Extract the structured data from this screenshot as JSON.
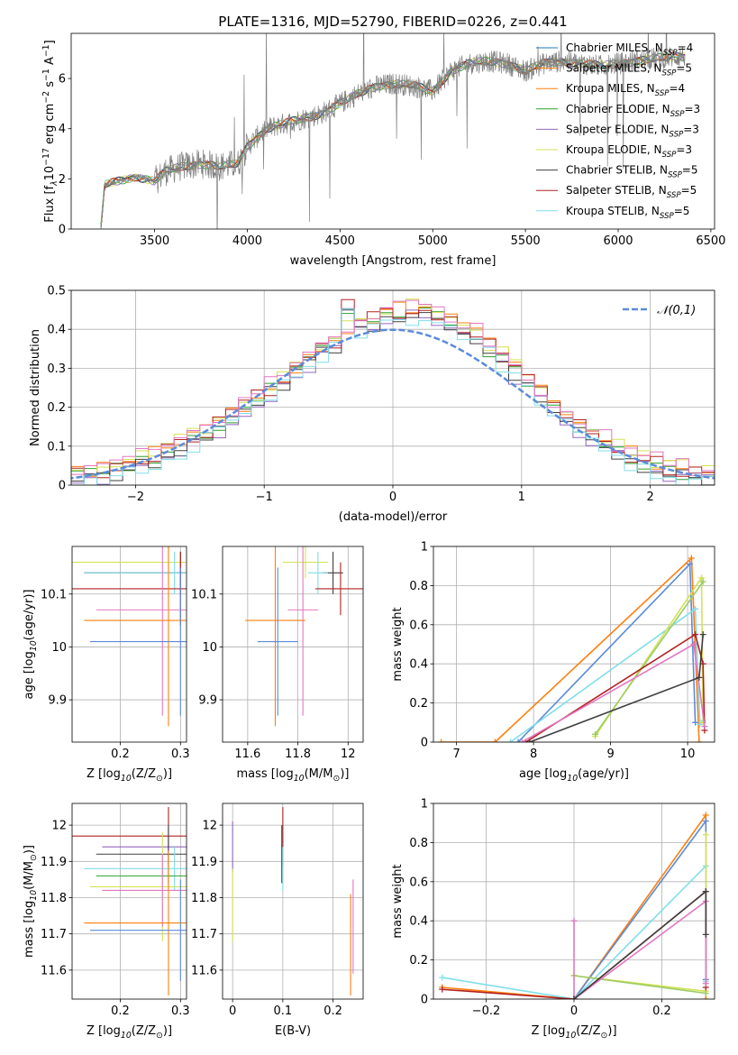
{
  "figure_title": "PLATE=1316, MJD=52790, FIBERID=0226, z=0.441",
  "chart_data": [
    {
      "type": "line",
      "panel": "spectrum",
      "xlabel": "wavelength [Angstrom, rest frame]",
      "ylabel": "Flux [f$_\\lambda$10$^{-17}$ erg cm$^{-2}$ s$^{-1}$ A$^{-1}$]",
      "xlim": [
        3050,
        6520
      ],
      "ylim": [
        0,
        7.8
      ],
      "xticks": [
        3500,
        4000,
        4500,
        5000,
        5500,
        6000,
        6500
      ],
      "yticks": [
        0,
        2,
        4,
        6
      ],
      "grid": false,
      "legend": "top-right",
      "data_color": "#808080",
      "wavelength_range": [
        3210,
        6360
      ],
      "continuum_knots": {
        "x": [
          3210,
          3230,
          3300,
          3400,
          3500,
          3560,
          3650,
          3750,
          3850,
          3950,
          4000,
          4100,
          4200,
          4300,
          4400,
          4500,
          4600,
          4700,
          4800,
          4900,
          5000,
          5100,
          5200,
          5300,
          5400,
          5500,
          5600,
          5700,
          5800,
          5900,
          6000,
          6100,
          6200,
          6360
        ],
        "y": [
          0.0,
          1.75,
          1.9,
          2.1,
          1.9,
          2.3,
          2.5,
          2.6,
          2.5,
          2.6,
          3.3,
          4.0,
          4.2,
          4.4,
          4.6,
          5.0,
          5.4,
          5.7,
          5.8,
          5.7,
          5.5,
          6.3,
          6.6,
          6.7,
          6.6,
          6.3,
          6.6,
          6.7,
          6.6,
          6.5,
          6.6,
          6.7,
          6.8,
          6.9
        ]
      },
      "series": [
        {
          "name": "Chabrier MILES, N$_{SSP}$=4",
          "color": "#1f77b4"
        },
        {
          "name": "Salpeter MILES, N$_{SSP}$=5",
          "color": "#ff7f0e"
        },
        {
          "name": "Kroupa MILES, N$_{SSP}$=4",
          "color": "#ff7f0e"
        },
        {
          "name": "Chabrier ELODIE, N$_{SSP}$=3",
          "color": "#2ca02c"
        },
        {
          "name": "Salpeter ELODIE, N$_{SSP}$=3",
          "color": "#9467bd"
        },
        {
          "name": "Kroupa ELODIE, N$_{SSP}$=3",
          "color": "#d4e157"
        },
        {
          "name": "Chabrier STELIB, N$_{SSP}$=5",
          "color": "#404040"
        },
        {
          "name": "Salpeter STELIB, N$_{SSP}$=5",
          "color": "#b22222"
        },
        {
          "name": "Kroupa STELIB, N$_{SSP}$=5",
          "color": "#80deea"
        }
      ]
    },
    {
      "type": "line",
      "panel": "residuals",
      "xlabel": "(data-model)/error",
      "ylabel": "Normed distribution",
      "xlim": [
        -2.5,
        2.5
      ],
      "ylim": [
        0,
        0.5
      ],
      "xticks": [
        -2,
        -1,
        0,
        1,
        2
      ],
      "yticks": [
        0.0,
        0.1,
        0.2,
        0.3,
        0.4,
        0.5
      ],
      "grid": true,
      "legend": "top-right",
      "curve_name": "$\\mathcal{N}(0,1)$",
      "curve_color": "#5b8bd9",
      "bin_width": 0.1,
      "series": [
        {
          "color": "#2ca02c",
          "offset": 0.0
        },
        {
          "color": "#ff7f0e",
          "offset": 0.013
        },
        {
          "color": "#9467bd",
          "offset": -0.011
        },
        {
          "color": "#d4e157",
          "offset": 0.017
        },
        {
          "color": "#404040",
          "offset": -0.006
        },
        {
          "color": "#b22222",
          "offset": 0.008
        },
        {
          "color": "#80deea",
          "offset": -0.015
        },
        {
          "color": "#e377c2",
          "offset": 0.021
        }
      ]
    },
    {
      "type": "scatter",
      "panel": "age-vs-Z",
      "xlabel": "Z [log$_{10}$(Z/Z$_\\odot$)]",
      "ylabel": "age  [log$_{10}$(age/yr)]",
      "xlim": [
        0.12,
        0.31
      ],
      "ylim": [
        9.82,
        10.19
      ],
      "xticks": [
        0.2,
        0.3
      ],
      "yticks": [
        9.9,
        10.0,
        10.1
      ],
      "grid": true,
      "points": [
        {
          "x": 0.28,
          "y": 10.16,
          "xerr": 0.17,
          "yerr": 0.03,
          "color": "#d4e157"
        },
        {
          "x": 0.3,
          "y": 10.14,
          "xerr": 0.16,
          "yerr": 0.04,
          "color": "#404040"
        },
        {
          "x": 0.29,
          "y": 10.14,
          "xerr": 0.15,
          "yerr": 0.04,
          "color": "#80deea"
        },
        {
          "x": 0.3,
          "y": 10.11,
          "xerr": 0.18,
          "yerr": 0.07,
          "color": "#b22222"
        },
        {
          "x": 0.27,
          "y": 10.07,
          "xerr": 0.11,
          "yerr": 0.2,
          "color": "#e377c2"
        },
        {
          "x": 0.28,
          "y": 10.05,
          "xerr": 0.14,
          "yerr": 0.2,
          "color": "#ff7f0e"
        },
        {
          "x": 0.3,
          "y": 10.01,
          "xerr": 0.15,
          "yerr": 0.14,
          "color": "#5b8bd9"
        }
      ]
    },
    {
      "type": "scatter",
      "panel": "age-vs-mass",
      "xlabel": "mass [log$_{10}$(M/M$_\\odot$)]",
      "ylabel": "",
      "xlim": [
        11.5,
        12.06
      ],
      "ylim": [
        9.82,
        10.19
      ],
      "xticks": [
        11.6,
        11.8,
        12.0
      ],
      "yticks": [
        9.9,
        10.0,
        10.1
      ],
      "grid": true,
      "points": [
        {
          "x": 11.83,
          "y": 10.16,
          "xerr": 0.09,
          "yerr": 0.03,
          "color": "#d4e157"
        },
        {
          "x": 11.94,
          "y": 10.14,
          "xerr": 0.04,
          "yerr": 0.04,
          "color": "#404040"
        },
        {
          "x": 11.88,
          "y": 10.14,
          "xerr": 0.04,
          "yerr": 0.04,
          "color": "#80deea"
        },
        {
          "x": 11.97,
          "y": 10.11,
          "xerr": 0.1,
          "yerr": 0.05,
          "color": "#b22222"
        },
        {
          "x": 11.82,
          "y": 10.07,
          "xerr": 0.06,
          "yerr": 0.2,
          "color": "#e377c2"
        },
        {
          "x": 11.71,
          "y": 10.05,
          "xerr": 0.12,
          "yerr": 0.2,
          "color": "#ff7f0e"
        },
        {
          "x": 11.72,
          "y": 10.01,
          "xerr": 0.08,
          "yerr": 0.14,
          "color": "#5b8bd9"
        }
      ]
    },
    {
      "type": "line",
      "panel": "mass-weight-vs-age",
      "xlabel": "age  [log$_{10}$(age/yr)]",
      "ylabel": "mass weight",
      "xlim": [
        6.7,
        10.35
      ],
      "ylim": [
        0,
        1.0
      ],
      "xticks": [
        7,
        8,
        9,
        10
      ],
      "yticks": [
        0.0,
        0.2,
        0.4,
        0.6,
        0.8,
        1.0
      ],
      "grid": true,
      "series": [
        {
          "color": "#ff7f0e",
          "x": [
            6.8,
            7.5,
            10.05,
            10.15
          ],
          "y": [
            0.0,
            0.0,
            0.94,
            0.0
          ]
        },
        {
          "color": "#5b8bd9",
          "x": [
            7.8,
            10.03,
            10.1
          ],
          "y": [
            0.0,
            0.91,
            0.1
          ]
        },
        {
          "color": "#80deea",
          "x": [
            7.7,
            10.1,
            10.16,
            10.2
          ],
          "y": [
            0.0,
            0.68,
            0.09,
            0.11
          ]
        },
        {
          "color": "#d4e157",
          "x": [
            8.8,
            10.18,
            10.2
          ],
          "y": [
            0.03,
            0.84,
            0.1
          ]
        },
        {
          "color": "#9ccc65",
          "x": [
            8.8,
            10.2
          ],
          "y": [
            0.04,
            0.82
          ]
        },
        {
          "color": "#b22222",
          "x": [
            7.9,
            10.1,
            10.2,
            10.22
          ],
          "y": [
            0.0,
            0.55,
            0.4,
            0.06
          ]
        },
        {
          "color": "#e377c2",
          "x": [
            7.85,
            10.08,
            10.22
          ],
          "y": [
            0.0,
            0.5,
            0.08
          ]
        },
        {
          "color": "#404040",
          "x": [
            7.95,
            10.15,
            10.2
          ],
          "y": [
            0.0,
            0.33,
            0.55
          ]
        }
      ]
    },
    {
      "type": "scatter",
      "panel": "mass-vs-Z",
      "xlabel": "Z [log$_{10}$(Z/Z$_\\odot$)]",
      "ylabel": "mass [log$_{10}$(M/M$_\\odot$)]",
      "xlim": [
        0.12,
        0.31
      ],
      "ylim": [
        11.52,
        12.06
      ],
      "xticks": [
        0.2,
        0.3
      ],
      "yticks": [
        11.6,
        11.7,
        11.8,
        11.9,
        12.0
      ],
      "grid": true,
      "points": [
        {
          "x": 0.28,
          "y": 11.97,
          "xerr": 0.17,
          "yerr": 0.08,
          "color": "#b22222"
        },
        {
          "x": 0.28,
          "y": 11.94,
          "xerr": 0.11,
          "yerr": 0.03,
          "color": "#9467bd"
        },
        {
          "x": 0.28,
          "y": 11.92,
          "xerr": 0.12,
          "yerr": 0.08,
          "color": "#404040"
        },
        {
          "x": 0.29,
          "y": 11.88,
          "xerr": 0.15,
          "yerr": 0.06,
          "color": "#80deea"
        },
        {
          "x": 0.28,
          "y": 11.86,
          "xerr": 0.12,
          "yerr": 0.04,
          "color": "#2ca02c"
        },
        {
          "x": 0.27,
          "y": 11.83,
          "xerr": 0.12,
          "yerr": 0.15,
          "color": "#d4e157"
        },
        {
          "x": 0.27,
          "y": 11.82,
          "xerr": 0.1,
          "yerr": 0.1,
          "color": "#e377c2"
        },
        {
          "x": 0.28,
          "y": 11.73,
          "xerr": 0.14,
          "yerr": 0.2,
          "color": "#ff7f0e"
        },
        {
          "x": 0.3,
          "y": 11.71,
          "xerr": 0.15,
          "yerr": 0.14,
          "color": "#5b8bd9"
        }
      ]
    },
    {
      "type": "scatter",
      "panel": "mass-vs-EBV",
      "xlabel": "E(B-V)",
      "ylabel": "",
      "xlim": [
        -0.02,
        0.26
      ],
      "ylim": [
        11.52,
        12.06
      ],
      "xticks": [
        0.0,
        0.1,
        0.2
      ],
      "yticks": [
        11.6,
        11.7,
        11.8,
        11.9,
        12.0
      ],
      "grid": true,
      "points": [
        {
          "x": 0.1,
          "y": 11.97,
          "yerr": 0.08,
          "color": "#b22222"
        },
        {
          "x": 0.0,
          "y": 11.94,
          "yerr": 0.07,
          "color": "#9467bd"
        },
        {
          "x": 0.098,
          "y": 11.92,
          "yerr": 0.08,
          "color": "#404040"
        },
        {
          "x": 0.1,
          "y": 11.88,
          "yerr": 0.06,
          "color": "#80deea"
        },
        {
          "x": 0.0,
          "y": 11.78,
          "yerr": 0.1,
          "color": "#d4e157"
        },
        {
          "x": 0.24,
          "y": 11.72,
          "yerr": 0.13,
          "color": "#e377c2"
        },
        {
          "x": 0.235,
          "y": 11.67,
          "yerr": 0.14,
          "color": "#ff7f0e"
        }
      ]
    },
    {
      "type": "line",
      "panel": "mass-weight-vs-Z",
      "xlabel": "Z [log$_{10}$(Z/Z$_\\odot$)]",
      "ylabel": "mass weight",
      "xlim": [
        -0.32,
        0.32
      ],
      "ylim": [
        0,
        1.0
      ],
      "xticks": [
        -0.2,
        0.0,
        0.2
      ],
      "yticks": [
        0.0,
        0.2,
        0.4,
        0.6,
        0.8,
        1.0
      ],
      "grid": true,
      "series": [
        {
          "color": "#ff7f0e",
          "x": [
            -0.3,
            0.0,
            0.3,
            0.3
          ],
          "y": [
            0.06,
            0.0,
            0.94,
            0.0
          ]
        },
        {
          "color": "#5b8bd9",
          "x": [
            0.0,
            0.3,
            0.3
          ],
          "y": [
            0.0,
            0.91,
            0.1
          ]
        },
        {
          "color": "#80deea",
          "x": [
            -0.3,
            0.0,
            0.3,
            0.3
          ],
          "y": [
            0.11,
            0.0,
            0.68,
            0.09
          ]
        },
        {
          "color": "#d4e157",
          "x": [
            0.0,
            0.3,
            0.3
          ],
          "y": [
            0.12,
            0.04,
            0.84
          ]
        },
        {
          "color": "#9ccc65",
          "x": [
            0.0,
            0.3
          ],
          "y": [
            0.12,
            0.03
          ]
        },
        {
          "color": "#b22222",
          "x": [
            -0.3,
            0.0,
            0.3,
            0.3
          ],
          "y": [
            0.05,
            0.0,
            0.55,
            0.06
          ]
        },
        {
          "color": "#e377c2",
          "x": [
            0.0,
            0.0,
            0.3,
            0.3
          ],
          "y": [
            0.4,
            0.0,
            0.5,
            0.08
          ]
        },
        {
          "color": "#404040",
          "x": [
            0.0,
            0.3,
            0.3
          ],
          "y": [
            0.0,
            0.55,
            0.33
          ]
        }
      ]
    }
  ]
}
